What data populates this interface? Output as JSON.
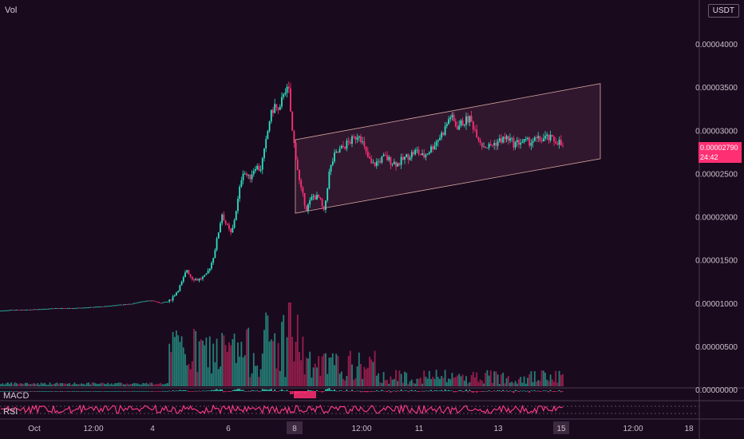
{
  "chart_data": {
    "type": "candlestick",
    "currency": "USDT",
    "indicators": [
      "Vol",
      "MACD",
      "RSI"
    ],
    "price_axis": {
      "ticks": [
        "0.00004000",
        "0.00003500",
        "0.00003000",
        "0.00002500",
        "0.00002000",
        "0.00001500",
        "0.00001000",
        "0.00000500",
        "0.00000000"
      ],
      "range": [
        0.0,
        4.25e-05
      ]
    },
    "time_axis": {
      "ticks": [
        "Oct",
        "12:00",
        "4",
        "6",
        "8",
        "12:00",
        "11",
        "13",
        "15",
        "12:00",
        "18"
      ],
      "highlighted": [
        "8",
        "15"
      ]
    },
    "last_price": "0.00002790",
    "countdown": "24:42",
    "price_path": [
      [
        0,
        9.2e-06
      ],
      [
        14,
        9.3e-06
      ],
      [
        30,
        9.3e-06
      ],
      [
        50,
        9.4e-06
      ],
      [
        70,
        9.5e-06
      ],
      [
        90,
        9.5e-06
      ],
      [
        110,
        9.6e-06
      ],
      [
        130,
        9.7e-06
      ],
      [
        150,
        9.9e-06
      ],
      [
        165,
        1e-05
      ],
      [
        178,
        1.03e-05
      ],
      [
        190,
        1.04e-05
      ],
      [
        200,
        1.01e-05
      ],
      [
        212,
        1.03e-05
      ],
      [
        222,
        1.15e-05
      ],
      [
        228,
        1.25e-05
      ],
      [
        234,
        1.4e-05
      ],
      [
        240,
        1.3e-05
      ],
      [
        248,
        1.28e-05
      ],
      [
        258,
        1.32e-05
      ],
      [
        266,
        1.5e-05
      ],
      [
        272,
        1.75e-05
      ],
      [
        278,
        2.05e-05
      ],
      [
        284,
        1.9e-05
      ],
      [
        290,
        1.8e-05
      ],
      [
        298,
        2.2e-05
      ],
      [
        304,
        2.55e-05
      ],
      [
        312,
        2.45e-05
      ],
      [
        320,
        2.6e-05
      ],
      [
        326,
        2.55e-05
      ],
      [
        332,
        2.8e-05
      ],
      [
        338,
        3.15e-05
      ],
      [
        344,
        3.3e-05
      ],
      [
        350,
        3.2e-05
      ],
      [
        356,
        3.5e-05
      ],
      [
        362,
        3.45e-05
      ],
      [
        366,
        3e-05
      ],
      [
        370,
        2.75e-05
      ],
      [
        376,
        2.35e-05
      ],
      [
        384,
        2.1e-05
      ],
      [
        392,
        2.25e-05
      ],
      [
        400,
        2.22e-05
      ],
      [
        406,
        2.05e-05
      ],
      [
        412,
        2.5e-05
      ],
      [
        418,
        2.7e-05
      ],
      [
        426,
        2.78e-05
      ],
      [
        434,
        2.85e-05
      ],
      [
        442,
        2.9e-05
      ],
      [
        450,
        2.98e-05
      ],
      [
        458,
        2.75e-05
      ],
      [
        466,
        2.6e-05
      ],
      [
        474,
        2.65e-05
      ],
      [
        482,
        2.7e-05
      ],
      [
        490,
        2.65e-05
      ],
      [
        498,
        2.62e-05
      ],
      [
        506,
        2.68e-05
      ],
      [
        514,
        2.73e-05
      ],
      [
        522,
        2.77e-05
      ],
      [
        530,
        2.7e-05
      ],
      [
        540,
        2.8e-05
      ],
      [
        548,
        2.9e-05
      ],
      [
        556,
        3e-05
      ],
      [
        564,
        3.18e-05
      ],
      [
        572,
        3.05e-05
      ],
      [
        580,
        3.1e-05
      ],
      [
        588,
        3.15e-05
      ],
      [
        596,
        3e-05
      ],
      [
        604,
        2.84e-05
      ],
      [
        612,
        2.82e-05
      ],
      [
        620,
        2.86e-05
      ],
      [
        628,
        2.9e-05
      ],
      [
        636,
        2.92e-05
      ],
      [
        644,
        2.85e-05
      ],
      [
        652,
        2.88e-05
      ],
      [
        660,
        2.87e-05
      ],
      [
        668,
        2.89e-05
      ],
      [
        676,
        2.9e-05
      ],
      [
        684,
        2.92e-05
      ],
      [
        692,
        2.9e-05
      ],
      [
        700,
        2.88e-05
      ],
      [
        706,
        2.79e-05
      ]
    ],
    "channel": {
      "upper": [
        [
          370,
          2.9e-05
        ],
        [
          752,
          3.55e-05
        ]
      ],
      "lower": [
        [
          370,
          2.05e-05
        ],
        [
          752,
          2.68e-05
        ]
      ]
    }
  },
  "colors": {
    "background": "#1a0a1e",
    "up": "#2de1c2",
    "down": "#ff2f73",
    "channel_line": "#d8a7a0",
    "channel_fill": "#3a1d34",
    "rsi_line": "#ff3d86",
    "grid": "#2a1a2e"
  }
}
